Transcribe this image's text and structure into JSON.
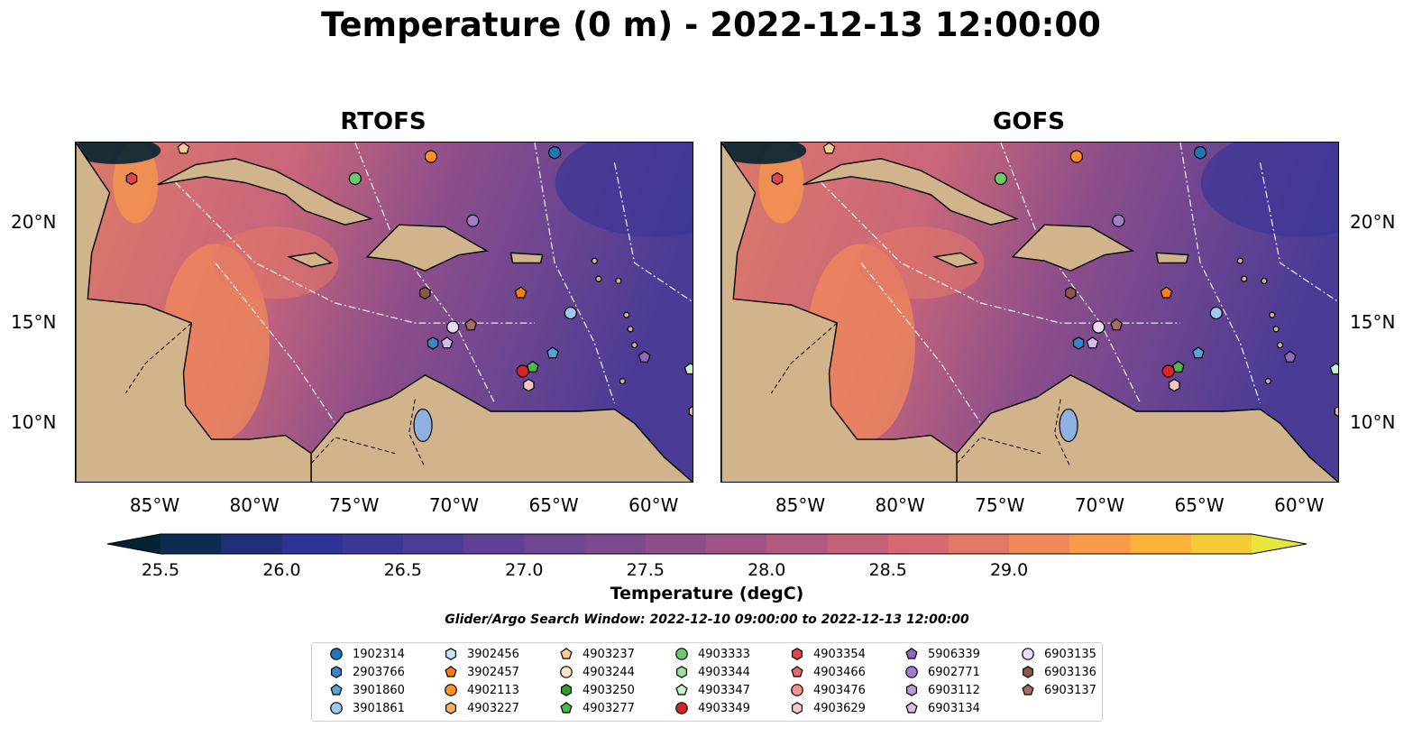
{
  "title": "Temperature (0 m) - 2022-12-13 12:00:00",
  "panels": [
    {
      "title": "RTOFS"
    },
    {
      "title": "GOFS"
    }
  ],
  "x_ticks": [
    "85°W",
    "80°W",
    "75°W",
    "70°W",
    "65°W",
    "60°W"
  ],
  "y_ticks": [
    "20°N",
    "15°N",
    "10°N"
  ],
  "colorbar": {
    "label": "Temperature (degC)",
    "ticks": [
      "25.5",
      "26.0",
      "26.5",
      "27.0",
      "27.5",
      "28.0",
      "28.5",
      "29.0"
    ],
    "colors": [
      "#042333",
      "#0c2c52",
      "#1e2f77",
      "#2c3395",
      "#3c3796",
      "#4c3c96",
      "#5e4194",
      "#6f4691",
      "#7d4a8e",
      "#8d4e8a",
      "#a05486",
      "#b25b81",
      "#c4617b",
      "#d56a73",
      "#e27866",
      "#f08959",
      "#f99b49",
      "#fbb13a",
      "#f5ca38",
      "#e8e53f"
    ]
  },
  "search_window": "Glider/Argo Search Window: 2022-12-10 09:00:00 to 2022-12-13 12:00:00",
  "legend": [
    {
      "label": "1902314",
      "shape": "circle",
      "color": "#1f77b4"
    },
    {
      "label": "2903766",
      "shape": "hexagon",
      "color": "#3a86c4"
    },
    {
      "label": "3901860",
      "shape": "pentagon",
      "color": "#55a5d8"
    },
    {
      "label": "3901861",
      "shape": "circle",
      "color": "#9ec9ec"
    },
    {
      "label": "3902456",
      "shape": "hexagon",
      "color": "#c6e2f5"
    },
    {
      "label": "3902457",
      "shape": "pentagon",
      "color": "#ff7f0e"
    },
    {
      "label": "4902113",
      "shape": "circle",
      "color": "#ff9028"
    },
    {
      "label": "4903227",
      "shape": "hexagon",
      "color": "#ffad62"
    },
    {
      "label": "4903237",
      "shape": "pentagon",
      "color": "#ffcb94"
    },
    {
      "label": "4903244",
      "shape": "circle",
      "color": "#ffe2c6"
    },
    {
      "label": "4903250",
      "shape": "hexagon",
      "color": "#2ca02c"
    },
    {
      "label": "4903277",
      "shape": "pentagon",
      "color": "#4cb84c"
    },
    {
      "label": "4903333",
      "shape": "circle",
      "color": "#6cc96c"
    },
    {
      "label": "4903344",
      "shape": "hexagon",
      "color": "#9be09b"
    },
    {
      "label": "4903347",
      "shape": "pentagon",
      "color": "#c9f2c9"
    },
    {
      "label": "4903349",
      "shape": "circle",
      "color": "#d62728"
    },
    {
      "label": "4903354",
      "shape": "hexagon",
      "color": "#e04848"
    },
    {
      "label": "4903466",
      "shape": "pentagon",
      "color": "#e86a6a"
    },
    {
      "label": "4903476",
      "shape": "circle",
      "color": "#f09090"
    },
    {
      "label": "4903629",
      "shape": "hexagon",
      "color": "#f8c4c4"
    },
    {
      "label": "5906339",
      "shape": "pentagon",
      "color": "#9467bd"
    },
    {
      "label": "6902771",
      "shape": "circle",
      "color": "#a07dcc"
    },
    {
      "label": "6903112",
      "shape": "hexagon",
      "color": "#b89ad8"
    },
    {
      "label": "6903134",
      "shape": "pentagon",
      "color": "#d2bcea"
    },
    {
      "label": "6903135",
      "shape": "circle",
      "color": "#ecdcf6"
    },
    {
      "label": "6903136",
      "shape": "hexagon",
      "color": "#8c564b"
    },
    {
      "label": "6903137",
      "shape": "pentagon",
      "color": "#a56e62"
    }
  ],
  "markers": [
    {
      "id": "1902314",
      "lon": -65.0,
      "lat": 23.5
    },
    {
      "id": "4902113",
      "lon": -71.2,
      "lat": 23.3
    },
    {
      "id": "4903333",
      "lon": -75.0,
      "lat": 22.2
    },
    {
      "id": "4903354",
      "lon": -86.2,
      "lat": 22.2
    },
    {
      "id": "4903237",
      "lon": -83.6,
      "lat": 23.7
    },
    {
      "id": "6902771",
      "lon": -69.1,
      "lat": 20.1
    },
    {
      "id": "6903136",
      "lon": -71.5,
      "lat": 16.5
    },
    {
      "id": "3902457",
      "lon": -66.7,
      "lat": 16.5
    },
    {
      "id": "3901861",
      "lon": -64.2,
      "lat": 15.5
    },
    {
      "id": "6903137",
      "lon": -69.2,
      "lat": 14.9
    },
    {
      "id": "6903135",
      "lon": -70.1,
      "lat": 14.8
    },
    {
      "id": "2903766",
      "lon": -71.1,
      "lat": 14.0
    },
    {
      "id": "6903134",
      "lon": -70.4,
      "lat": 14.0
    },
    {
      "id": "3901860",
      "lon": -65.1,
      "lat": 13.5
    },
    {
      "id": "5906339",
      "lon": -60.5,
      "lat": 13.3
    },
    {
      "id": "4903277",
      "lon": -66.1,
      "lat": 12.8
    },
    {
      "id": "4903349",
      "lon": -66.6,
      "lat": 12.6
    },
    {
      "id": "4903629",
      "lon": -66.3,
      "lat": 11.9
    },
    {
      "id": "4903347",
      "lon": -58.2,
      "lat": 12.7
    },
    {
      "id": "4903227",
      "lon": -58.0,
      "lat": 10.6
    }
  ]
}
